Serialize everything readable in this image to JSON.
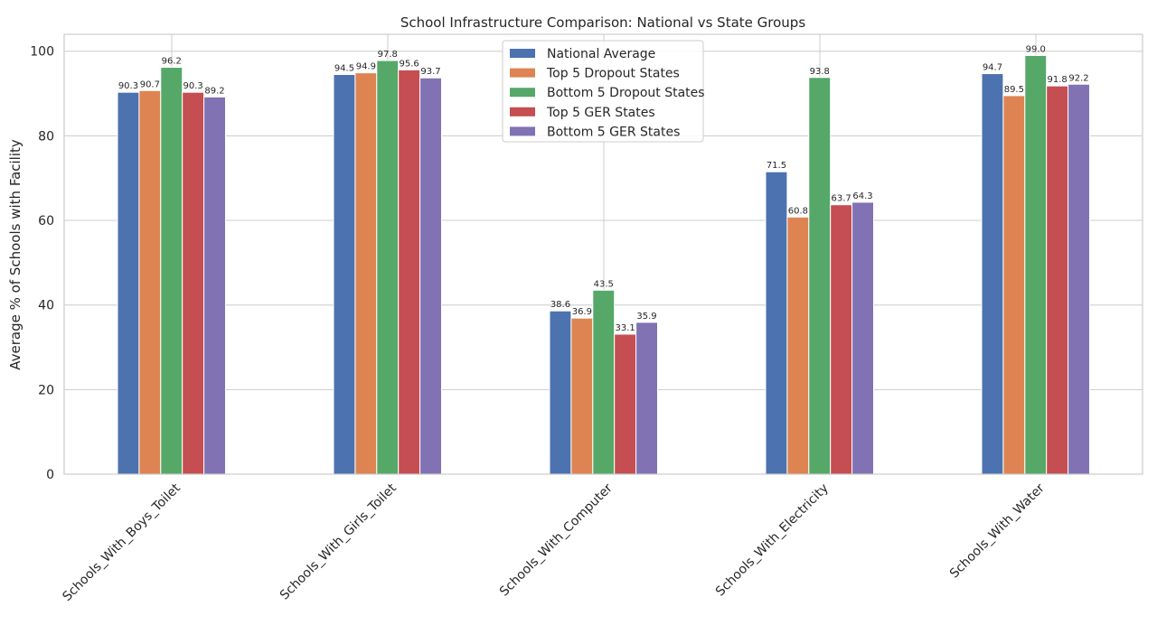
{
  "chart_data": {
    "type": "bar",
    "title": "School Infrastructure Comparison: National vs State Groups",
    "xlabel": "",
    "ylabel": "Average % of Schools with Facility",
    "ylim": [
      0,
      104
    ],
    "yticks": [
      0,
      20,
      40,
      60,
      80,
      100
    ],
    "grid": true,
    "legend_position": "top-center",
    "categories": [
      "Schools_With_Boys_Toilet",
      "Schools_With_Girls_Toilet",
      "Schools_With_Computer",
      "Schools_With_Electricity",
      "Schools_With_Water"
    ],
    "series": [
      {
        "name": "National Average",
        "color": "#4c72b0",
        "values": [
          90.3,
          94.5,
          38.6,
          71.5,
          94.7
        ]
      },
      {
        "name": "Top 5 Dropout States",
        "color": "#dd8452",
        "values": [
          90.7,
          94.9,
          36.9,
          60.8,
          89.5
        ]
      },
      {
        "name": "Bottom 5 Dropout States",
        "color": "#55a868",
        "values": [
          96.2,
          97.8,
          43.5,
          93.8,
          99.0
        ]
      },
      {
        "name": "Top 5 GER States",
        "color": "#c44e52",
        "values": [
          90.3,
          95.6,
          33.1,
          63.7,
          91.8
        ]
      },
      {
        "name": "Bottom 5 GER States",
        "color": "#8172b3",
        "values": [
          89.2,
          93.7,
          35.9,
          64.3,
          92.2
        ]
      }
    ]
  }
}
